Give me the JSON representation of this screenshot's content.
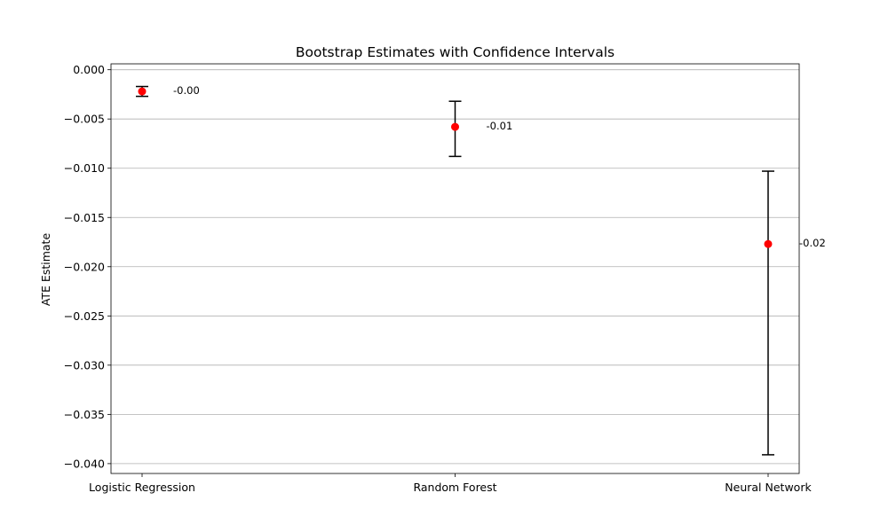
{
  "chart_data": {
    "type": "scatter",
    "title": "Bootstrap Estimates with Confidence Intervals",
    "xlabel": "",
    "ylabel": "ATE Estimate",
    "categories": [
      "Logistic Regression",
      "Random Forest",
      "Neural Network"
    ],
    "estimates": [
      -0.0022,
      -0.0058,
      -0.0177
    ],
    "ci_lower": [
      -0.0027,
      -0.0088,
      -0.0391
    ],
    "ci_upper": [
      -0.0017,
      -0.0032,
      -0.0103
    ],
    "data_labels": [
      "-0.00",
      "-0.01",
      "-0.02"
    ],
    "ylim": [
      -0.041,
      0.0006
    ],
    "yticks": [
      0.0,
      -0.005,
      -0.01,
      -0.015,
      -0.02,
      -0.025,
      -0.03,
      -0.035,
      -0.04
    ],
    "ytick_labels": [
      "0.000",
      "−0.005",
      "−0.010",
      "−0.015",
      "−0.020",
      "−0.025",
      "−0.030",
      "−0.035",
      "−0.040"
    ],
    "grid": "horizontal",
    "colors": {
      "point": "#ff0000",
      "errorbar": "#000000",
      "grid": "#b0b0b0"
    }
  }
}
